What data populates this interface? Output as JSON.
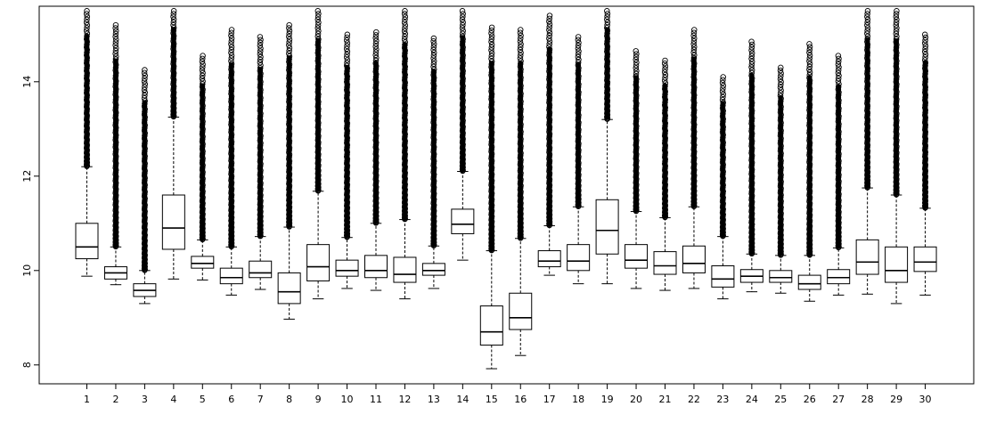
{
  "chart_data": {
    "type": "boxplot",
    "title": "",
    "xlabel": "",
    "ylabel": "",
    "ylim": [
      7.6,
      15.6
    ],
    "y_ticks": [
      8,
      10,
      12,
      14
    ],
    "y_tick_labels": [
      "8",
      "10",
      "12",
      "14"
    ],
    "categories": [
      "1",
      "2",
      "3",
      "4",
      "5",
      "6",
      "7",
      "8",
      "9",
      "10",
      "11",
      "12",
      "13",
      "14",
      "15",
      "16",
      "17",
      "18",
      "19",
      "20",
      "21",
      "22",
      "23",
      "24",
      "25",
      "26",
      "27",
      "28",
      "29",
      "30"
    ],
    "boxes": [
      {
        "min": 9.88,
        "q1": 10.25,
        "median": 10.5,
        "q3": 11.0,
        "max": 12.2,
        "outlier_max": 15.5
      },
      {
        "min": 9.7,
        "q1": 9.82,
        "median": 9.95,
        "q3": 10.08,
        "max": 10.5,
        "outlier_max": 15.2
      },
      {
        "min": 9.3,
        "q1": 9.45,
        "median": 9.58,
        "q3": 9.72,
        "max": 10.0,
        "outlier_max": 14.25
      },
      {
        "min": 9.82,
        "q1": 10.45,
        "median": 10.9,
        "q3": 11.6,
        "max": 13.25,
        "outlier_max": 15.5
      },
      {
        "min": 9.8,
        "q1": 10.05,
        "median": 10.15,
        "q3": 10.3,
        "max": 10.65,
        "outlier_max": 14.55
      },
      {
        "min": 9.48,
        "q1": 9.72,
        "median": 9.85,
        "q3": 10.05,
        "max": 10.5,
        "outlier_max": 15.1
      },
      {
        "min": 9.6,
        "q1": 9.85,
        "median": 9.95,
        "q3": 10.2,
        "max": 10.72,
        "outlier_max": 14.95
      },
      {
        "min": 8.97,
        "q1": 9.3,
        "median": 9.55,
        "q3": 9.95,
        "max": 10.92,
        "outlier_max": 15.2
      },
      {
        "min": 9.4,
        "q1": 9.78,
        "median": 10.08,
        "q3": 10.55,
        "max": 11.68,
        "outlier_max": 15.5
      },
      {
        "min": 9.62,
        "q1": 9.88,
        "median": 10.0,
        "q3": 10.22,
        "max": 10.7,
        "outlier_max": 15.0
      },
      {
        "min": 9.58,
        "q1": 9.85,
        "median": 10.0,
        "q3": 10.32,
        "max": 11.0,
        "outlier_max": 15.05
      },
      {
        "min": 9.4,
        "q1": 9.75,
        "median": 9.92,
        "q3": 10.28,
        "max": 11.08,
        "outlier_max": 15.5
      },
      {
        "min": 9.62,
        "q1": 9.9,
        "median": 10.0,
        "q3": 10.15,
        "max": 10.52,
        "outlier_max": 14.92
      },
      {
        "min": 10.22,
        "q1": 10.78,
        "median": 10.98,
        "q3": 11.3,
        "max": 12.1,
        "outlier_max": 15.5
      },
      {
        "min": 7.92,
        "q1": 8.42,
        "median": 8.7,
        "q3": 9.25,
        "max": 10.42,
        "outlier_max": 15.15
      },
      {
        "min": 8.2,
        "q1": 8.75,
        "median": 9.0,
        "q3": 9.52,
        "max": 10.68,
        "outlier_max": 15.1
      },
      {
        "min": 9.9,
        "q1": 10.08,
        "median": 10.2,
        "q3": 10.42,
        "max": 10.95,
        "outlier_max": 15.4
      },
      {
        "min": 9.72,
        "q1": 10.0,
        "median": 10.2,
        "q3": 10.55,
        "max": 11.35,
        "outlier_max": 14.95
      },
      {
        "min": 9.72,
        "q1": 10.35,
        "median": 10.85,
        "q3": 11.5,
        "max": 13.2,
        "outlier_max": 15.5
      },
      {
        "min": 9.62,
        "q1": 10.05,
        "median": 10.22,
        "q3": 10.55,
        "max": 11.25,
        "outlier_max": 14.65
      },
      {
        "min": 9.58,
        "q1": 9.92,
        "median": 10.1,
        "q3": 10.4,
        "max": 11.12,
        "outlier_max": 14.45
      },
      {
        "min": 9.62,
        "q1": 9.95,
        "median": 10.15,
        "q3": 10.52,
        "max": 11.35,
        "outlier_max": 15.1
      },
      {
        "min": 9.4,
        "q1": 9.65,
        "median": 9.82,
        "q3": 10.1,
        "max": 10.72,
        "outlier_max": 14.1
      },
      {
        "min": 9.55,
        "q1": 9.75,
        "median": 9.88,
        "q3": 10.02,
        "max": 10.35,
        "outlier_max": 14.85
      },
      {
        "min": 9.52,
        "q1": 9.75,
        "median": 9.85,
        "q3": 10.0,
        "max": 10.32,
        "outlier_max": 14.3
      },
      {
        "min": 9.35,
        "q1": 9.6,
        "median": 9.72,
        "q3": 9.9,
        "max": 10.32,
        "outlier_max": 14.8
      },
      {
        "min": 9.48,
        "q1": 9.72,
        "median": 9.85,
        "q3": 10.02,
        "max": 10.48,
        "outlier_max": 14.55
      },
      {
        "min": 9.5,
        "q1": 9.92,
        "median": 10.18,
        "q3": 10.65,
        "max": 11.75,
        "outlier_max": 15.5
      },
      {
        "min": 9.3,
        "q1": 9.75,
        "median": 10.0,
        "q3": 10.5,
        "max": 11.6,
        "outlier_max": 15.5
      },
      {
        "min": 9.48,
        "q1": 9.98,
        "median": 10.18,
        "q3": 10.5,
        "max": 11.32,
        "outlier_max": 15.0
      }
    ]
  }
}
